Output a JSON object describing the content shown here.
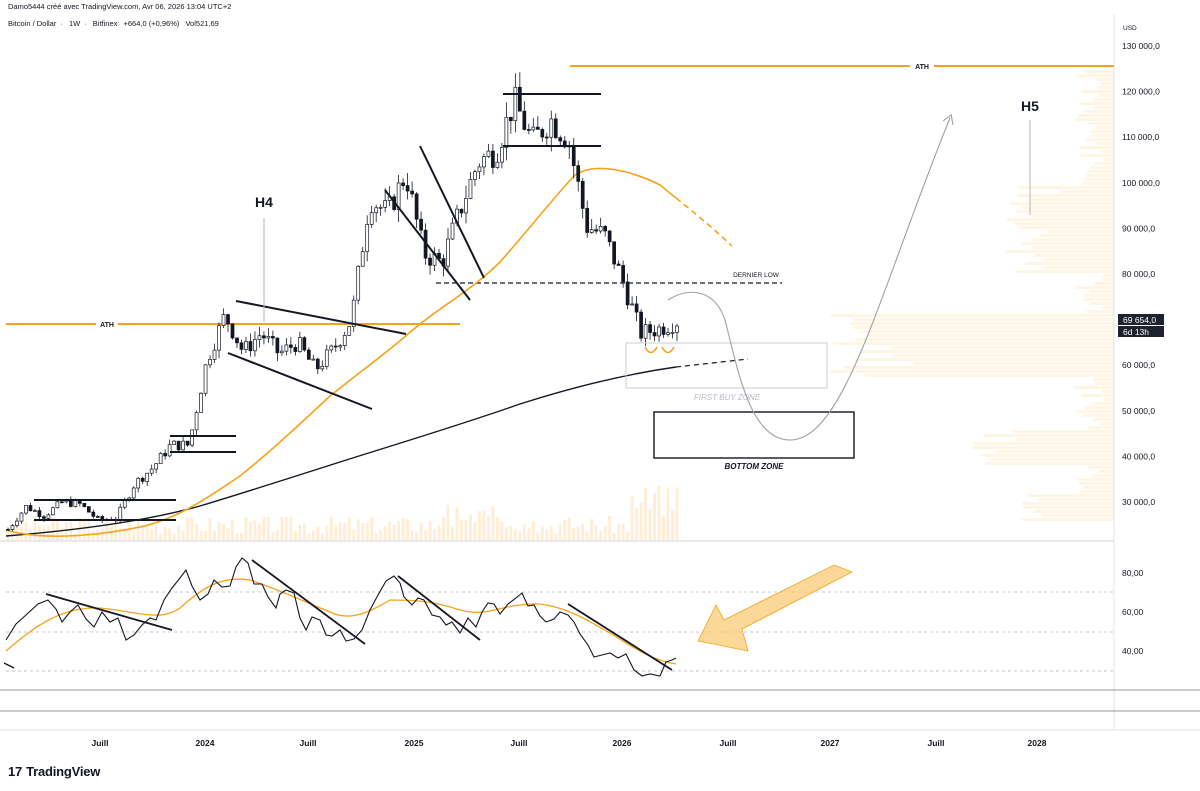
{
  "header": {
    "author_line": "Damo5444 créé avec TradingView.com, Avr 06, 2026 13:04 UTC+2",
    "symbol": "Bitcoin / Dollar",
    "interval": "1W",
    "exchange": "Bitfinex",
    "change": "+664,0 (+0,96%)",
    "volume": "Vol521,69"
  },
  "price_axis": {
    "currency": "USD",
    "labels": [
      "130 000,0",
      "120 000,0",
      "110 000,0",
      "100 000,0",
      "90 000,0",
      "80 000,0",
      "60 000,0",
      "50 000,0",
      "40 000,0",
      "30 000,0"
    ],
    "current_price_tag": "69 654,0",
    "countdown_tag": "6d 13h"
  },
  "rsi_axis": {
    "labels": [
      "80,00",
      "60,00",
      "40,00"
    ]
  },
  "time_axis": {
    "labels": [
      "Juill",
      "2024",
      "Juill",
      "2025",
      "Juill",
      "2026",
      "Juill",
      "2027",
      "Juill",
      "2028"
    ]
  },
  "annotations": {
    "ath_old": "ATH",
    "ath_new": "ATH",
    "h4": "H4",
    "h5": "H5",
    "dernier_low": "DERNIER LOW",
    "first_buy_zone": "FIRST BUY ZONE",
    "bottom_zone": "BOTTOM ZONE"
  },
  "footer": {
    "brand": "TradingView",
    "mark": "17"
  },
  "colors": {
    "orange": "#f7a21b",
    "candle_dark": "#131722",
    "arrow_orange": "#f9c76b",
    "grid_zone": "#cccccc"
  },
  "chart_data": {
    "type": "candlestick",
    "instrument": "Bitcoin / Dollar",
    "interval": "1W",
    "price_range": [
      22000,
      132000
    ],
    "current_price": 69654,
    "ath_levels": [
      73800,
      126000
    ],
    "dernier_low": 78000,
    "first_buy_zone": [
      55000,
      65000
    ],
    "bottom_zone": [
      40000,
      50000
    ],
    "closes": [
      {
        "date": "2023-03",
        "close": 24000
      },
      {
        "date": "2023-04",
        "close": 29000
      },
      {
        "date": "2023-05",
        "close": 27000
      },
      {
        "date": "2023-06",
        "close": 30000
      },
      {
        "date": "2023-07",
        "close": 29500
      },
      {
        "date": "2023-08",
        "close": 26000
      },
      {
        "date": "2023-09",
        "close": 26500
      },
      {
        "date": "2023-10",
        "close": 34000
      },
      {
        "date": "2023-11",
        "close": 37500
      },
      {
        "date": "2023-12",
        "close": 42500
      },
      {
        "date": "2024-01",
        "close": 42500
      },
      {
        "date": "2024-02",
        "close": 61000
      },
      {
        "date": "2024-03",
        "close": 71000
      },
      {
        "date": "2024-04",
        "close": 63000
      },
      {
        "date": "2024-05",
        "close": 67000
      },
      {
        "date": "2024-06",
        "close": 62500
      },
      {
        "date": "2024-07",
        "close": 65000
      },
      {
        "date": "2024-08",
        "close": 59000
      },
      {
        "date": "2024-09",
        "close": 63500
      },
      {
        "date": "2024-10",
        "close": 70000
      },
      {
        "date": "2024-11",
        "close": 96500
      },
      {
        "date": "2024-12",
        "close": 93500
      },
      {
        "date": "2025-01",
        "close": 102000
      },
      {
        "date": "2025-02",
        "close": 84500
      },
      {
        "date": "2025-03",
        "close": 82500
      },
      {
        "date": "2025-04",
        "close": 94000
      },
      {
        "date": "2025-05",
        "close": 104500
      },
      {
        "date": "2025-06",
        "close": 107000
      },
      {
        "date": "2025-07",
        "close": 118000
      },
      {
        "date": "2025-08",
        "close": 109000
      },
      {
        "date": "2025-09",
        "close": 114000
      },
      {
        "date": "2025-10",
        "close": 109500
      },
      {
        "date": "2025-11",
        "close": 90500
      },
      {
        "date": "2025-12",
        "close": 88500
      },
      {
        "date": "2026-01",
        "close": 78500
      },
      {
        "date": "2026-02",
        "close": 67000
      },
      {
        "date": "2026-03",
        "close": 68000
      },
      {
        "date": "2026-04",
        "close": 69654
      }
    ],
    "indicator_rsi": {
      "levels": [
        70,
        50,
        30
      ],
      "axis_ticks": [
        80,
        60,
        40
      ]
    }
  }
}
